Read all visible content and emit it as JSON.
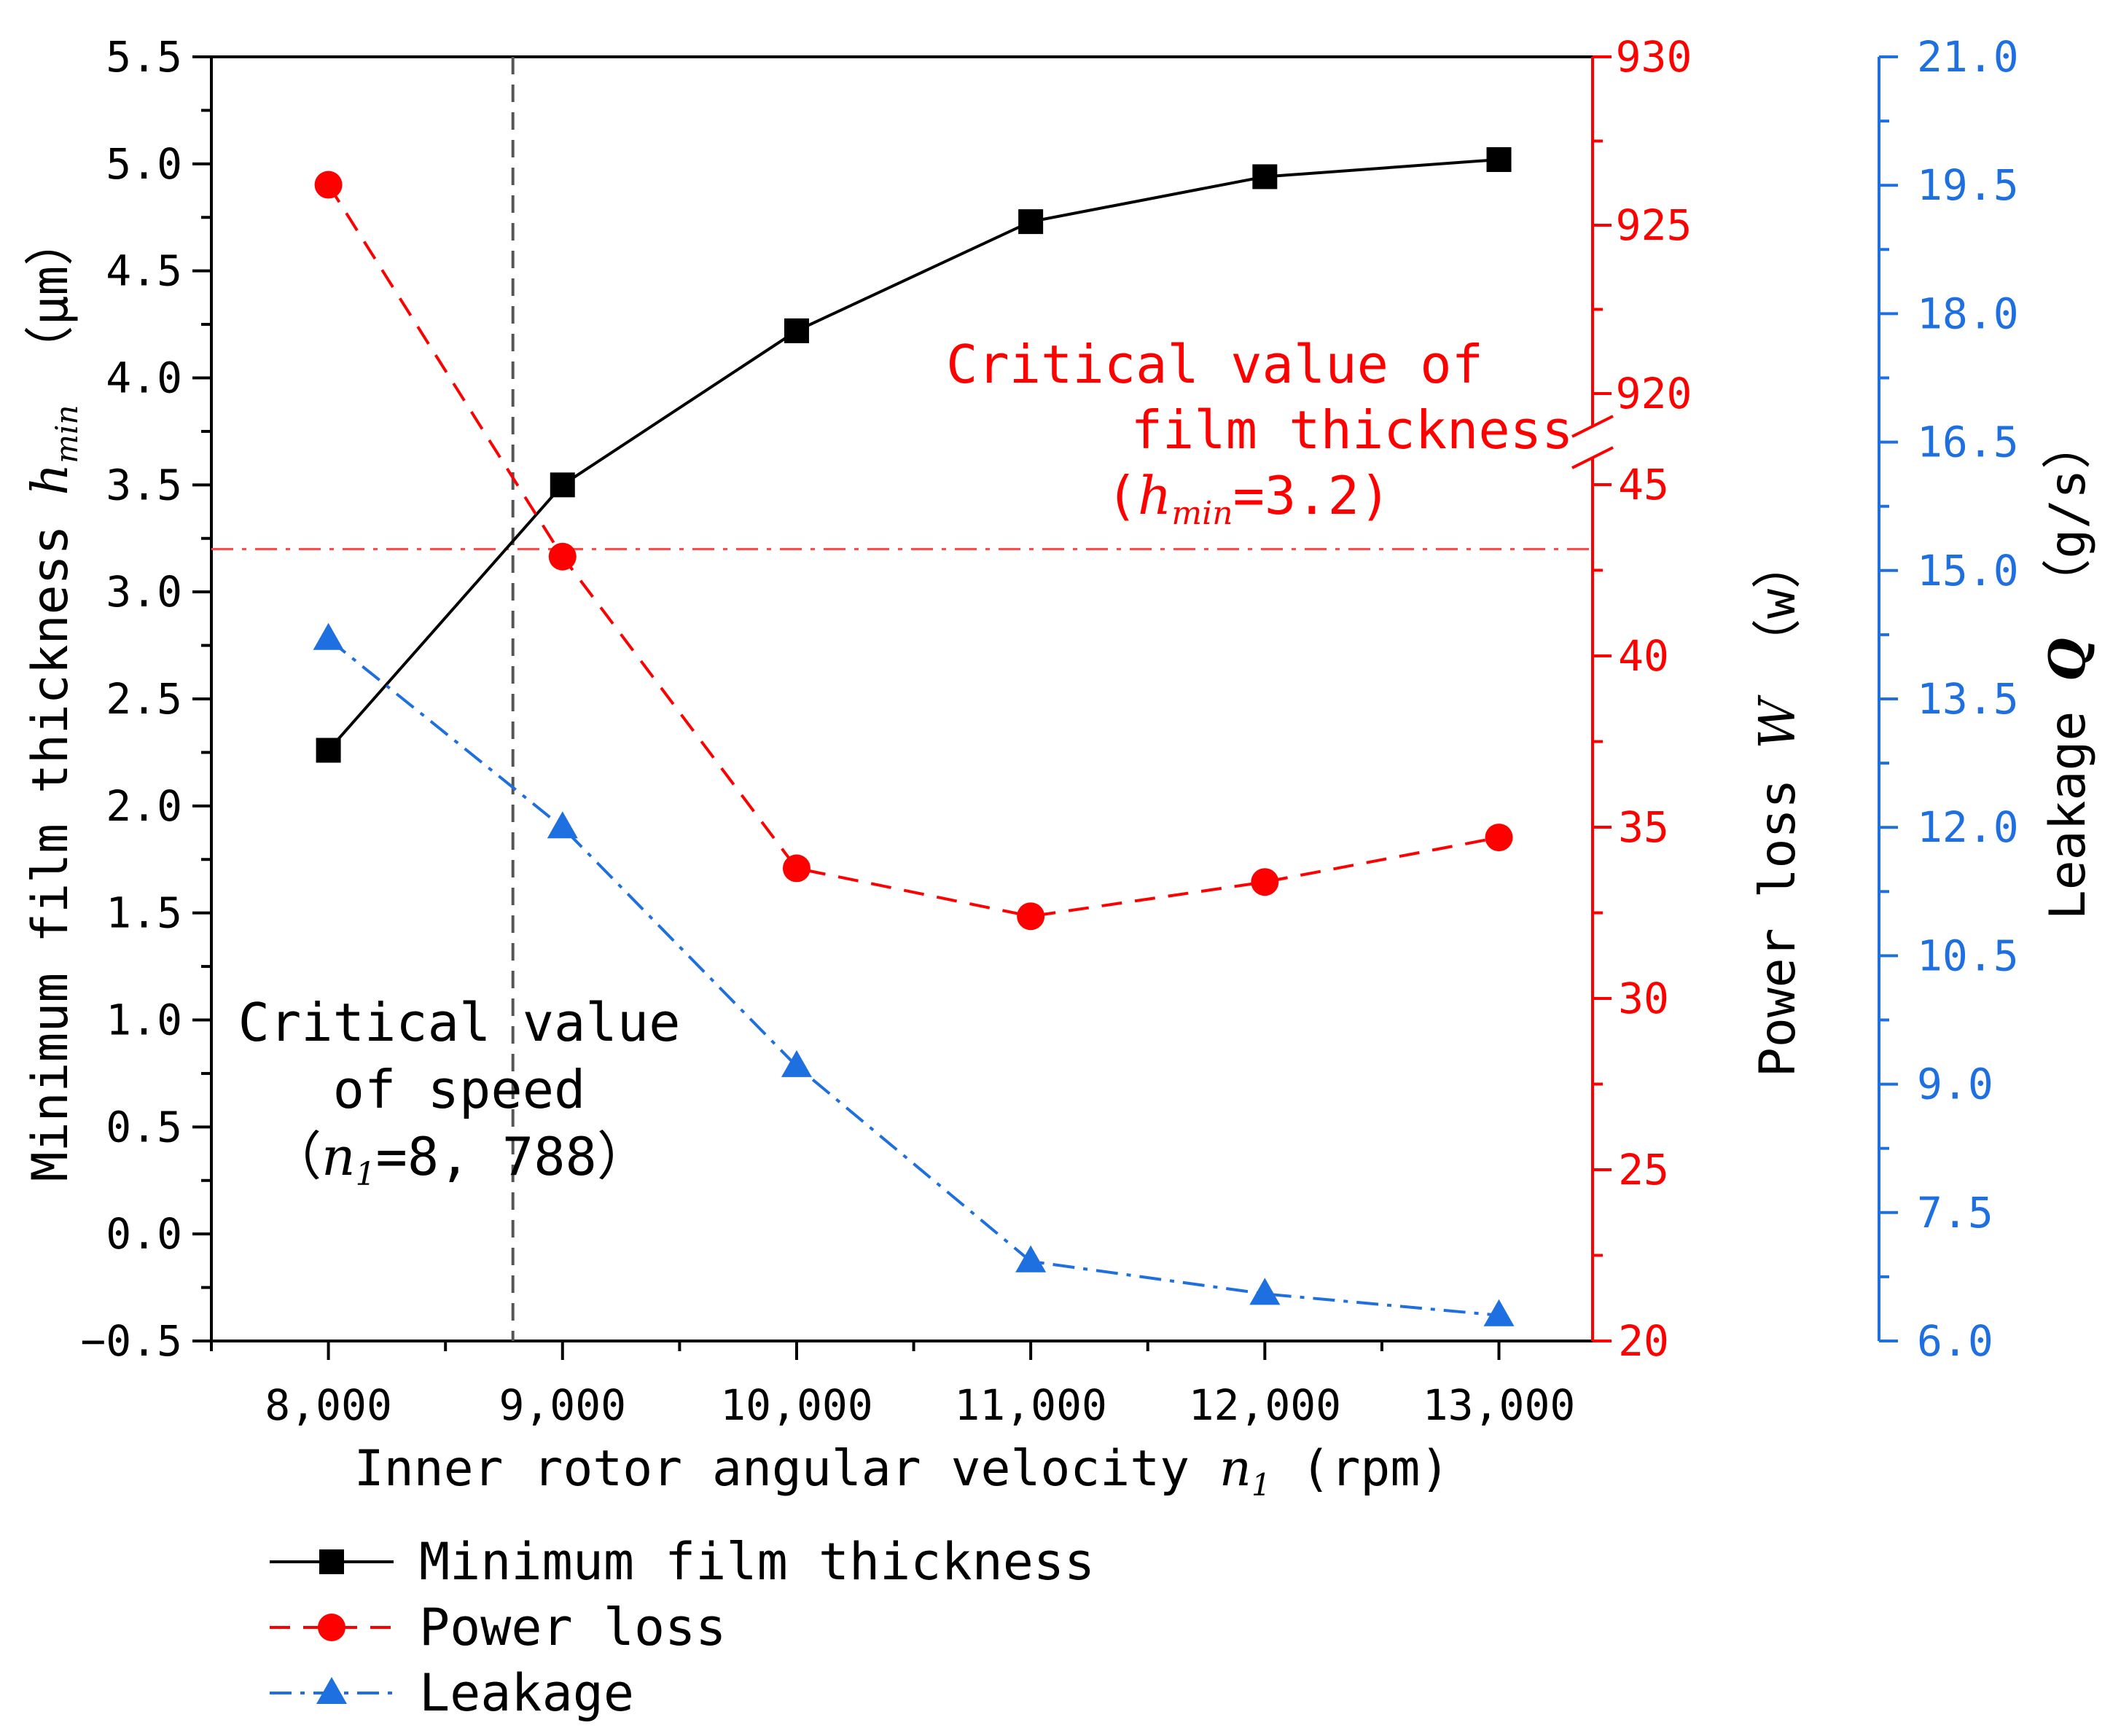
{
  "chart_data": {
    "type": "line",
    "x": [
      8000,
      9000,
      10000,
      11000,
      12000,
      13000
    ],
    "x_tick_labels": [
      "8,000",
      "9,000",
      "10,000",
      "11,000",
      "12,000",
      "13,000"
    ],
    "xlim": [
      7500,
      13400
    ],
    "xlabel": {
      "main": "Inner rotor angular velocity ",
      "var": "n",
      "sub": "1",
      "unit": " (rpm)"
    },
    "axes": {
      "left": {
        "label": {
          "main": "Minimum film thickness ",
          "var": "h",
          "sub": "min",
          "unit": " （μm）"
        },
        "ylim": [
          -0.5,
          5.5
        ],
        "tick_labels": [
          "−0.5",
          "0.0",
          "0.5",
          "1.0",
          "1.5",
          "2.0",
          "2.5",
          "3.0",
          "3.5",
          "4.0",
          "4.5",
          "5.0",
          "5.5"
        ],
        "color": "#000000"
      },
      "right1": {
        "label": {
          "main": "Power loss ",
          "var": "W",
          "unit": " （w）"
        },
        "lower_segment": {
          "range": [
            20,
            45
          ],
          "tick_values": [
            20,
            25,
            30,
            35,
            40,
            45
          ]
        },
        "upper_segment": {
          "range": [
            919,
            930
          ],
          "tick_values": [
            920,
            925,
            930
          ]
        },
        "tick_labels_lower": [
          "20",
          "25",
          "30",
          "35",
          "40",
          "45"
        ],
        "tick_labels_upper": [
          "920",
          "925",
          "930"
        ],
        "color": "#ff0000"
      },
      "right2": {
        "label": {
          "main": "Leakage ",
          "var": "Q",
          "unit": " （g/s）"
        },
        "ylim": [
          6.0,
          21.0
        ],
        "tick_labels": [
          "6.0",
          "7.5",
          "9.0",
          "10.5",
          "12.0",
          "13.5",
          "15.0",
          "16.5",
          "18.0",
          "19.5",
          "21.0"
        ],
        "color": "#1e6fe0"
      }
    },
    "series": [
      {
        "name": "Minimum film thickness",
        "axis": "left",
        "color": "#000000",
        "marker": "square",
        "dash": "solid",
        "values": [
          2.26,
          3.5,
          4.22,
          4.73,
          4.94,
          5.02
        ]
      },
      {
        "name": "Power loss",
        "axis": "right1",
        "color": "#ff0000",
        "marker": "circle",
        "dash": "dashed",
        "values": [
          926.2,
          42.9,
          33.8,
          32.4,
          33.4,
          34.7
        ]
      },
      {
        "name": "Leakage",
        "axis": "right2",
        "color": "#1e6fe0",
        "marker": "triangle",
        "dash": "dashdot",
        "values": [
          14.2,
          12.0,
          9.21,
          6.93,
          6.55,
          6.3
        ]
      }
    ],
    "reference_lines": [
      {
        "orientation": "horizontal",
        "axis": "left",
        "value": 3.2,
        "color": "#ff4444",
        "dash": "dashdot"
      },
      {
        "orientation": "vertical",
        "value": 8788,
        "color": "#555555",
        "dash": "dashed"
      }
    ],
    "annotations": {
      "critical_film": {
        "line1": "Critical value of",
        "line2": "film thickness",
        "line3_open": "(",
        "line3_var": "h",
        "line3_sub": "min",
        "line3_rest": "=3.2)",
        "color": "#ff0000"
      },
      "critical_speed": {
        "line1": "Critical value",
        "line2": "of speed",
        "line3_open": "（",
        "line3_var": "n",
        "line3_sub": "1",
        "line3_rest": "=8, 788）",
        "color": "#000000"
      }
    },
    "legend": {
      "position": "bottom-left"
    }
  }
}
